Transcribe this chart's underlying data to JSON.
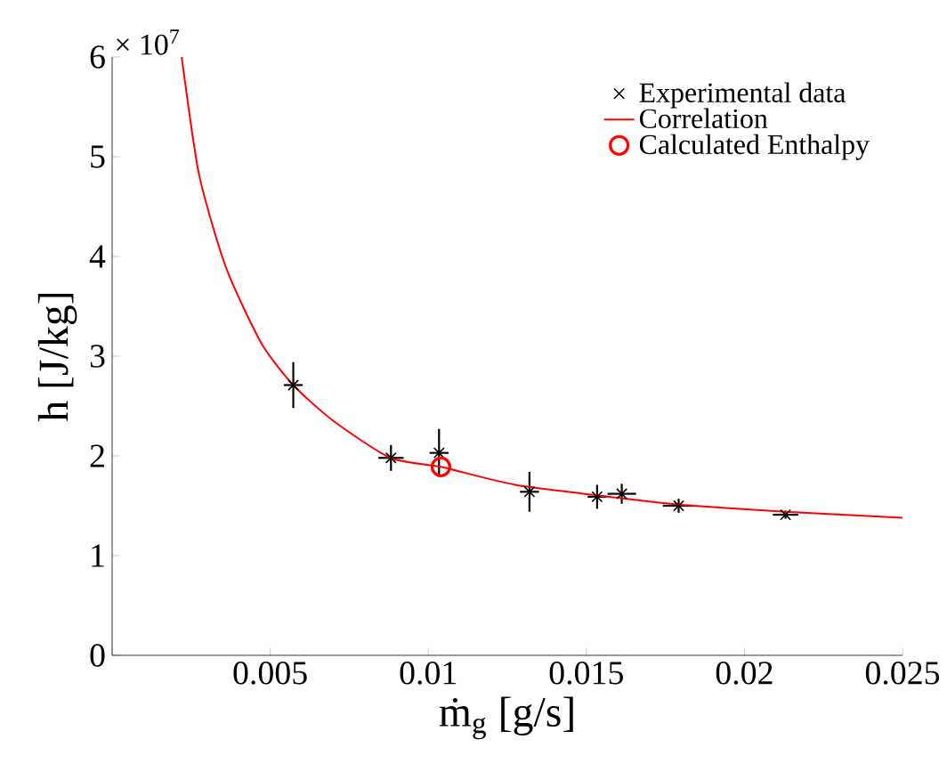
{
  "chart_data": {
    "type": "scatter",
    "xlabel": "ṁ$_{g}$ [g/s]",
    "ylabel": "h [J/kg]",
    "annotations": [
      "× 10$^{7}$"
    ],
    "xlim": [
      0,
      0.025
    ],
    "ylim": [
      0,
      6
    ],
    "xticks": [
      {
        "value": 0,
        "label": null
      },
      0.005,
      0.01,
      0.015,
      0.02,
      0.025
    ],
    "yticks": [
      0,
      1,
      2,
      3,
      4,
      5,
      6
    ],
    "legend": "top right",
    "series": [
      {
        "name": "Experimental data",
        "marker": "cross",
        "color": "#000000",
        "x": [
          0.00573,
          0.00882,
          0.01034,
          0.0132,
          0.01534,
          0.01612,
          0.01792,
          0.0213
        ],
        "values": [
          2.71,
          1.98,
          2.03,
          1.64,
          1.59,
          1.62,
          1.5,
          1.41
        ],
        "errors": [
          0.23,
          0.13,
          0.24,
          0.2,
          0.12,
          0.1,
          0.07,
          0.04
        ],
        "xerrors": [
          0.0003,
          0.0004,
          0.0003,
          0.0003,
          0.0003,
          0.00045,
          0.0005,
          0.0004
        ]
      },
      {
        "name": "Correlation",
        "type": "line",
        "marker": "none",
        "color": "#ff0000",
        "x": [
          0.0022,
          0.00275,
          0.0036,
          0.00472,
          0.00573,
          0.007,
          0.0088,
          0.0104,
          0.01275,
          0.016,
          0.018,
          0.0213,
          0.025
        ],
        "values": [
          6,
          4.82,
          3.89,
          3.13,
          2.71,
          2.35,
          1.98,
          1.89,
          1.71,
          1.58,
          1.51,
          1.44,
          1.38
        ]
      },
      {
        "name": "Calculated Enthalpy",
        "marker": "circle",
        "color": "#ff0000",
        "x": [
          0.0104
        ],
        "values": [
          1.89
        ]
      }
    ]
  }
}
